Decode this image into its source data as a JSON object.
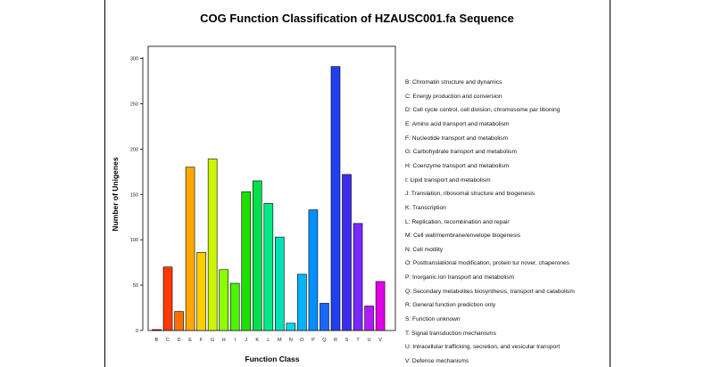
{
  "chart_data": {
    "type": "bar",
    "title": "COG Function Classification of HZAUSC001.fa Sequence",
    "xlabel": "Function Class",
    "ylabel": "Number of Unigenes",
    "ylim": [
      0,
      300
    ],
    "yticks": [
      0,
      50,
      100,
      150,
      200,
      250,
      300
    ],
    "grid": false,
    "legend_position": "right",
    "categories": [
      "B",
      "C",
      "D",
      "E",
      "F",
      "G",
      "H",
      "I",
      "J",
      "K",
      "L",
      "M",
      "N",
      "O",
      "P",
      "Q",
      "R",
      "S",
      "T",
      "U",
      "V"
    ],
    "values": [
      1,
      70,
      21,
      180,
      86,
      189,
      67,
      52,
      153,
      165,
      140,
      103,
      8,
      62,
      133,
      30,
      291,
      172,
      118,
      27,
      54
    ],
    "colors": [
      "#ff0000",
      "#ff3a00",
      "#ff7000",
      "#ffa800",
      "#ffd000",
      "#ccf500",
      "#8cff00",
      "#4cf500",
      "#1ee000",
      "#00e04c",
      "#00ec82",
      "#00e0b6",
      "#00d8f0",
      "#00b4ff",
      "#0090ff",
      "#1868ff",
      "#2040f0",
      "#3c2cf0",
      "#7828ff",
      "#b418ff",
      "#e000e8"
    ],
    "legend": [
      "B: Chromatin structure and dynamics",
      "C: Energy production and conversion",
      "D: Cell cycle control, cell division, chromosome par titioning",
      "E: Amino acid transport and metabolism",
      "F: Nucleotide transport and metabolism",
      "G: Carbohydrate transport and metabolism",
      "H: Coenzyme transport and metabolism",
      "I: Lipid transport and metabolism",
      "J: Translation, ribosomal structure and biogenesis",
      "K: Transcription",
      "L: Replication, recombination and repair",
      "M: Cell wall/membrane/envelope biogenesis",
      "N: Cell motility",
      "O: Posttranslational modification, protein tur nover, chaperones",
      "P: Inorganic ion transport and metabolism",
      "Q: Secondary metabolites biosynthesis, transport and catabolism",
      "R: General function prediction only",
      "S: Function unknown",
      "T: Signal transduction mechanisms",
      "U: Intracellular trafficking, secretion, and vesicular transport",
      "V: Defense mechanisms"
    ]
  }
}
